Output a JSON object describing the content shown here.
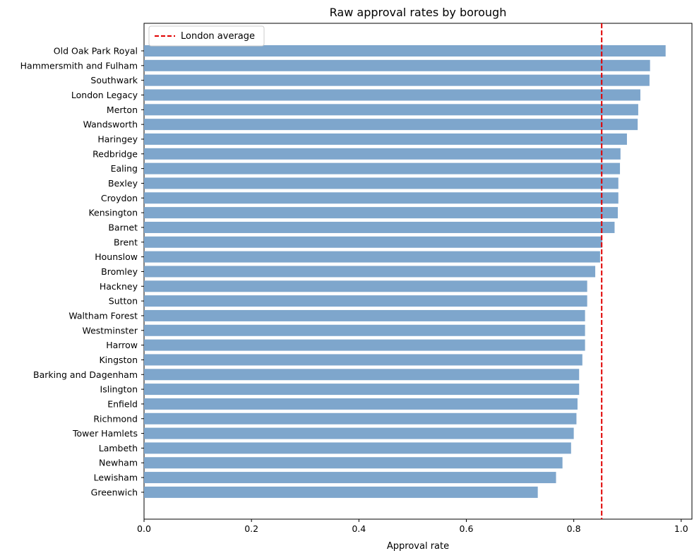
{
  "chart_data": {
    "type": "bar",
    "orientation": "horizontal",
    "title": "Raw approval rates by borough",
    "xlabel": "Approval rate",
    "ylabel": "",
    "xlim": [
      0,
      1.02
    ],
    "xticks": [
      0.0,
      0.2,
      0.4,
      0.6,
      0.8,
      1.0
    ],
    "xtick_labels": [
      "0.0",
      "0.2",
      "0.4",
      "0.6",
      "0.8",
      "1.0"
    ],
    "grid": false,
    "bar_color": "#7ea6cc",
    "categories": [
      "Old Oak Park Royal",
      "Hammersmith and Fulham",
      "Southwark",
      "London Legacy",
      "Merton",
      "Wandsworth",
      "Haringey",
      "Redbridge",
      "Ealing",
      "Bexley",
      "Croydon",
      "Kensington",
      "Barnet",
      "Brent",
      "Hounslow",
      "Bromley",
      "Hackney",
      "Sutton",
      "Waltham Forest",
      "Westminster",
      "Harrow",
      "Kingston",
      "Barking and Dagenham",
      "Islington",
      "Enfield",
      "Richmond",
      "Tower Hamlets",
      "Lambeth",
      "Newham",
      "Lewisham",
      "Greenwich"
    ],
    "values": [
      0.971,
      0.942,
      0.941,
      0.924,
      0.92,
      0.919,
      0.899,
      0.887,
      0.886,
      0.883,
      0.883,
      0.882,
      0.876,
      0.853,
      0.849,
      0.84,
      0.825,
      0.825,
      0.821,
      0.821,
      0.821,
      0.816,
      0.81,
      0.81,
      0.807,
      0.805,
      0.8,
      0.795,
      0.779,
      0.767,
      0.733
    ],
    "reference_line": {
      "label": "London average",
      "value": 0.852,
      "color": "#e00000",
      "style": "dashed"
    },
    "legend": {
      "placement": "top-left",
      "entries": [
        "London average"
      ]
    }
  }
}
